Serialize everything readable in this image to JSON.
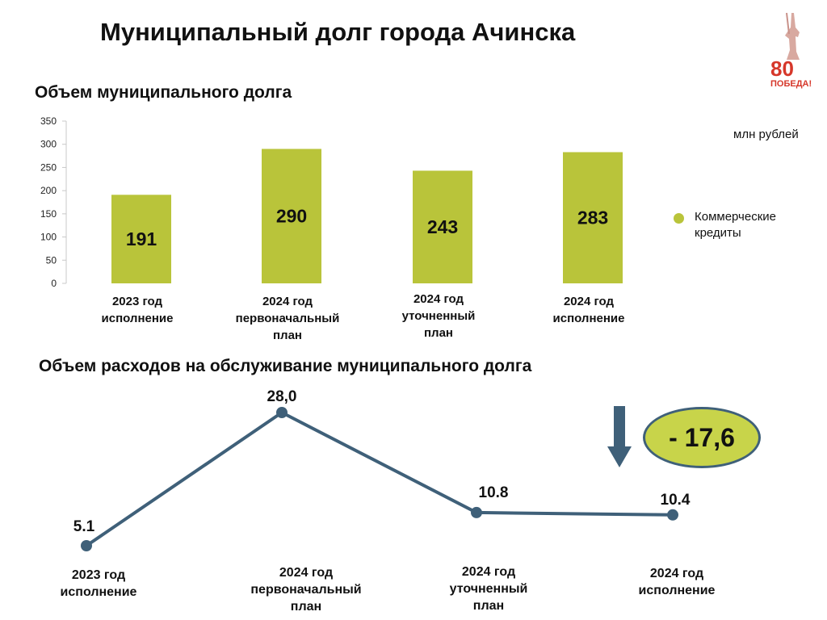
{
  "page": {
    "title": "Муниципальный долг города Ачинска",
    "bar_section_title": "Объем муниципального долга",
    "line_section_title": "Объем расходов на обслуживание муниципального долга",
    "unit": "млн рублей",
    "logo": {
      "icon": "victory-80-logo",
      "text_number": "80",
      "text_word": "ПОБЕДА!"
    },
    "decrease_badge": "- 17,6",
    "colors": {
      "bar": "#b9c43a",
      "line": "#3f6079",
      "badge": "#c8d44a",
      "text": "#111111"
    }
  },
  "chart_data": [
    {
      "type": "bar",
      "title": "Объем муниципального долга",
      "ylabel": "",
      "ylim": [
        0,
        350
      ],
      "yticks": [
        0,
        50,
        100,
        150,
        200,
        250,
        300,
        350
      ],
      "categories": [
        [
          "2023 год",
          "исполнение"
        ],
        [
          "2024 год",
          "первоначальный",
          "план"
        ],
        [
          "2024 год",
          "уточненный",
          "план"
        ],
        [
          "2024 год",
          "исполнение"
        ]
      ],
      "series": [
        {
          "name": "Коммерческие кредиты",
          "values": [
            191,
            290,
            243,
            283
          ],
          "labels": [
            "191",
            "290",
            "243",
            "283"
          ]
        }
      ],
      "legend": "right",
      "grid": false
    },
    {
      "type": "line",
      "title": "Объем расходов на обслуживание муниципального долга",
      "categories": [
        [
          "2023 год",
          "исполнение"
        ],
        [
          "2024 год",
          "первоначальный",
          "план"
        ],
        [
          "2024 год",
          "уточненный",
          "план"
        ],
        [
          "2024 год",
          "исполнение"
        ]
      ],
      "values": [
        5.1,
        28.0,
        10.8,
        10.4
      ],
      "labels": [
        "5.1",
        "28,0",
        "10.8",
        "10.4"
      ],
      "grid": false
    }
  ]
}
